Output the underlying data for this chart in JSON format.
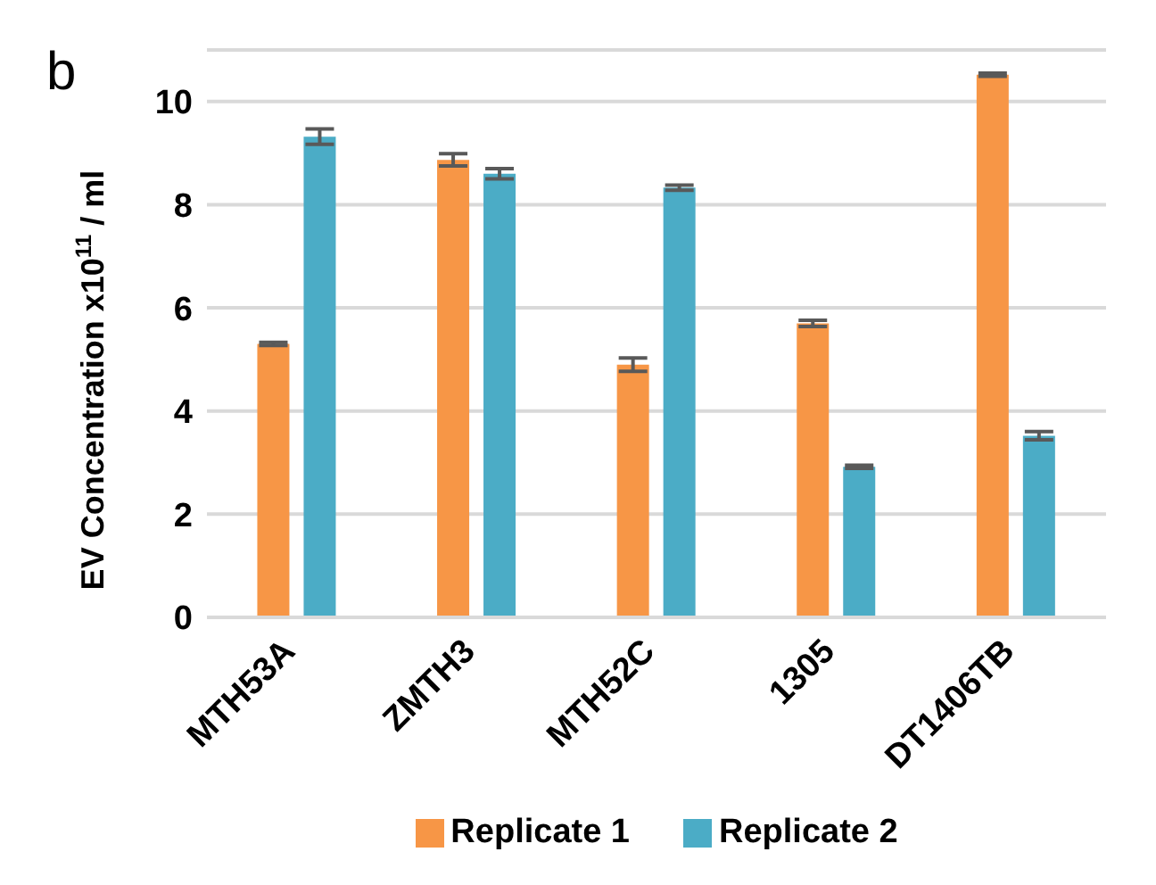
{
  "chart_data": {
    "type": "bar",
    "ylabel": "EV Concentration x10$^{11}$ / ml",
    "annotations": [
      "b"
    ],
    "categories": [
      "MTH53A",
      "ZMTH3",
      "MTH52C",
      "1305",
      "DT1406TB"
    ],
    "series": [
      {
        "name": "Replicate 1",
        "color": "#f79646",
        "values": [
          5.3,
          8.87,
          4.9,
          5.7,
          10.52
        ],
        "errors": [
          0.03,
          0.12,
          0.13,
          0.06,
          0.03
        ]
      },
      {
        "name": "Replicate 2",
        "color": "#4bacc6",
        "values": [
          9.32,
          8.6,
          8.33,
          2.92,
          3.52
        ],
        "errors": [
          0.15,
          0.1,
          0.05,
          0.03,
          0.08
        ]
      }
    ],
    "ylim": [
      0,
      11
    ],
    "yticks": [
      0,
      2,
      4,
      6,
      8,
      10
    ],
    "grid": "y",
    "legend": "bottom"
  }
}
